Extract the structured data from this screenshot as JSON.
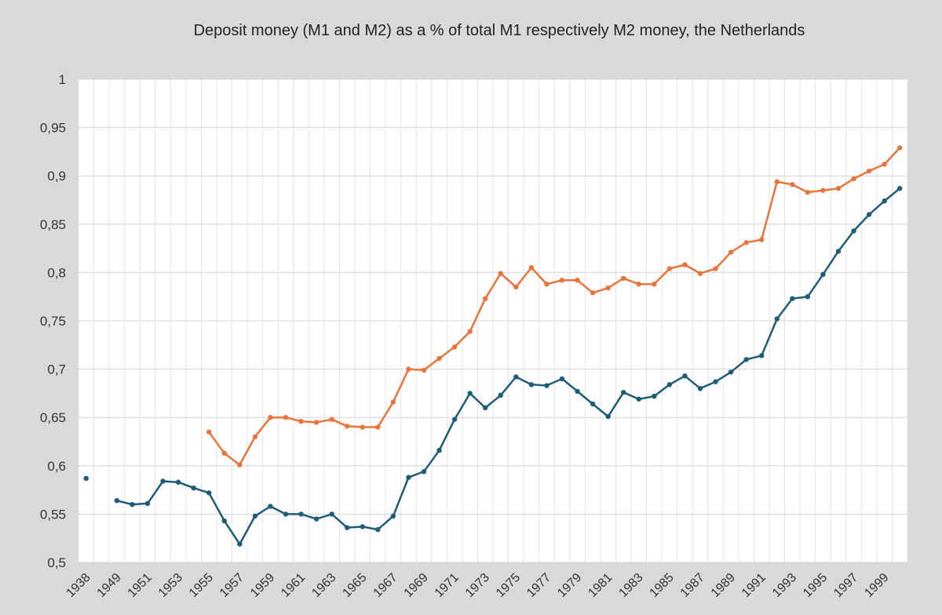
{
  "chart_data": {
    "type": "line",
    "title": "Deposit money (M1 and M2) as a  % of total M1 respectively M2 money, the Netherlands",
    "xlabel": "",
    "ylabel": "",
    "ylim": [
      0.5,
      1.0
    ],
    "grid": true,
    "colors": {
      "m1": "#1f5c7a",
      "m2": "#e8743b"
    },
    "yticks": [
      "0,5",
      "0,55",
      "0,6",
      "0,65",
      "0,7",
      "0,75",
      "0,8",
      "0,85",
      "0,9",
      "0,95",
      "1"
    ],
    "x": [
      "1938",
      "1948",
      "1949",
      "1950",
      "1951",
      "1952",
      "1953",
      "1954",
      "1955",
      "1956",
      "1957",
      "1958",
      "1959",
      "1960",
      "1961",
      "1962",
      "1963",
      "1964",
      "1965",
      "1966",
      "1967",
      "1968",
      "1969",
      "1970",
      "1971",
      "1972",
      "1973",
      "1974",
      "1975",
      "1976",
      "1977",
      "1978",
      "1979",
      "1980",
      "1981",
      "1982",
      "1983",
      "1984",
      "1985",
      "1986",
      "1987",
      "1988",
      "1989",
      "1990",
      "1991",
      "1992",
      "1993",
      "1994",
      "1995",
      "1996",
      "1997",
      "1998",
      "1999",
      "2000"
    ],
    "xtick_labels": [
      "1938",
      "1949",
      "1951",
      "1953",
      "1955",
      "1957",
      "1959",
      "1961",
      "1963",
      "1965",
      "1967",
      "1969",
      "1971",
      "1973",
      "1975",
      "1977",
      "1979",
      "1981",
      "1983",
      "1985",
      "1987",
      "1989",
      "1991",
      "1993",
      "1995",
      "1997",
      "1999"
    ],
    "series": [
      {
        "name": "M1",
        "values": [
          0.587,
          null,
          0.564,
          0.56,
          0.561,
          0.584,
          0.583,
          0.577,
          0.572,
          0.543,
          0.519,
          0.548,
          0.558,
          0.55,
          0.55,
          0.545,
          0.55,
          0.536,
          0.537,
          0.534,
          0.548,
          0.588,
          0.594,
          0.616,
          0.648,
          0.675,
          0.66,
          0.673,
          0.692,
          0.684,
          0.683,
          0.69,
          0.677,
          0.664,
          0.651,
          0.676,
          0.669,
          0.672,
          0.684,
          0.693,
          0.68,
          0.687,
          0.697,
          0.71,
          0.714,
          0.752,
          0.773,
          0.775,
          0.798,
          0.822,
          0.843,
          0.86,
          0.874,
          0.887
        ]
      },
      {
        "name": "M2",
        "values": [
          null,
          null,
          null,
          null,
          null,
          null,
          null,
          null,
          0.635,
          0.613,
          0.601,
          0.63,
          0.65,
          0.65,
          0.646,
          0.645,
          0.648,
          0.641,
          0.64,
          0.64,
          0.666,
          0.7,
          0.699,
          0.711,
          0.723,
          0.739,
          0.773,
          0.799,
          0.785,
          0.805,
          0.788,
          0.792,
          0.792,
          0.779,
          0.784,
          0.794,
          0.788,
          0.788,
          0.804,
          0.808,
          0.799,
          0.804,
          0.821,
          0.831,
          0.834,
          0.894,
          0.891,
          0.883,
          0.885,
          0.887,
          0.897,
          0.905,
          0.912,
          0.929
        ]
      }
    ]
  }
}
